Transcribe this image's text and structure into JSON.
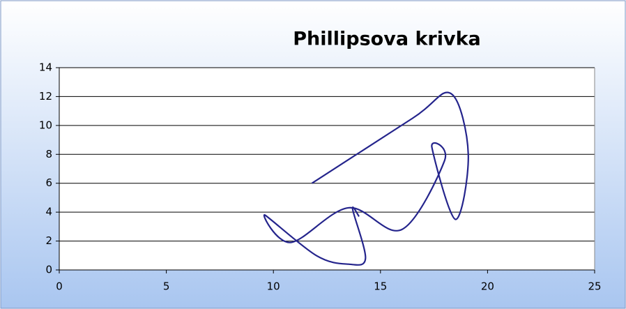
{
  "chart_data": {
    "type": "scatter",
    "title": "Phillipsova krivka",
    "x": [
      11.8,
      16.5,
      18.3,
      19.1,
      18.5,
      17.4,
      18,
      16,
      13.5,
      10.8,
      9.6,
      12,
      13.5,
      14.3,
      13.7,
      14
    ],
    "series": [
      {
        "color": "#24248c",
        "values": [
          6,
          10.5,
          12.2,
          8,
          3.5,
          8.5,
          7.6,
          2.8,
          4.3,
          1.9,
          3.8,
          1,
          0.4,
          0.8,
          4.2,
          3.7
        ]
      }
    ],
    "xlim": [
      0,
      25
    ],
    "xticks": [
      0,
      5,
      10,
      15,
      20,
      25
    ],
    "ylim": [
      0,
      14
    ],
    "yticks": [
      0,
      2,
      4,
      6,
      8,
      10,
      12,
      14
    ],
    "grid": true
  }
}
